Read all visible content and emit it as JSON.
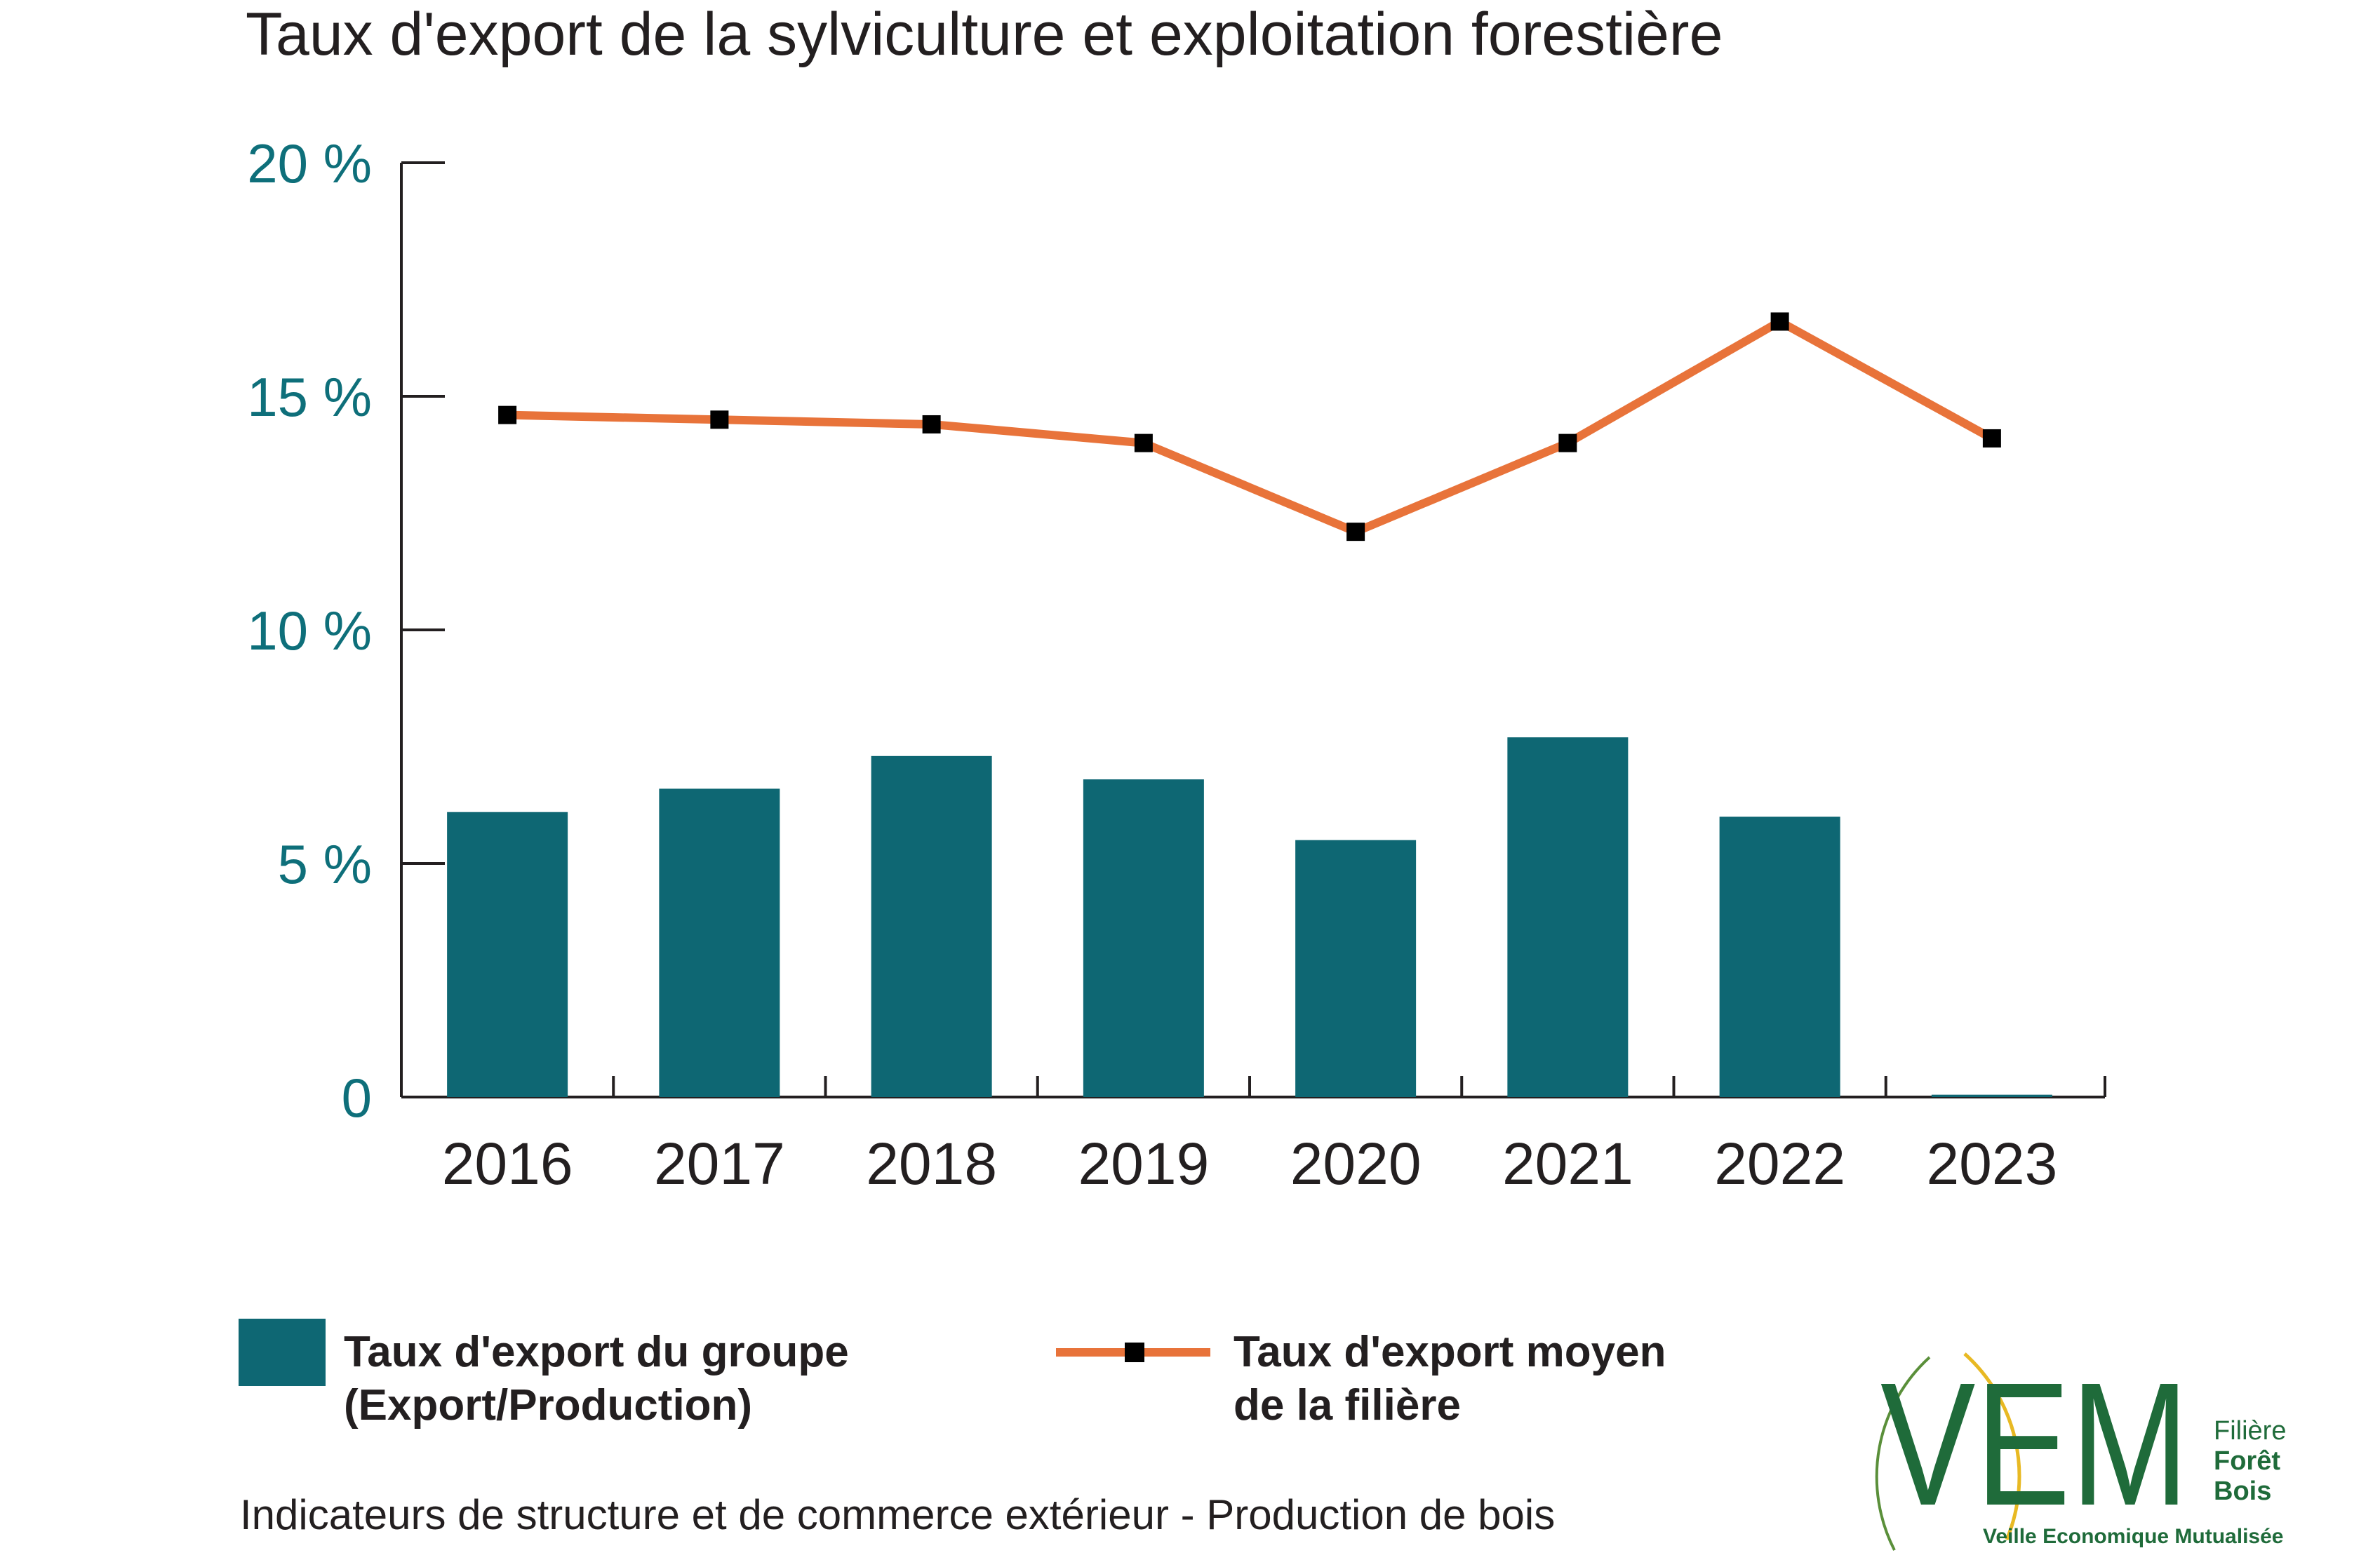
{
  "chart_data": {
    "type": "bar",
    "title": "Taux d'export de la sylviculture et exploitation forestière",
    "categories": [
      "2016",
      "2017",
      "2018",
      "2019",
      "2020",
      "2021",
      "2022",
      "2023"
    ],
    "yticks": [
      "0",
      "5 %",
      "10 %",
      "15 %",
      "20 %"
    ],
    "ylim": [
      0,
      20
    ],
    "series": [
      {
        "name": "Taux d'export du groupe (Export/Production)",
        "legend_lines": [
          "Taux d'export du groupe",
          "(Export/Production)"
        ],
        "type": "bar",
        "values": [
          6.1,
          6.6,
          7.3,
          6.8,
          5.5,
          7.7,
          6.0,
          0.05
        ],
        "color": "#0e6773"
      },
      {
        "name": "Taux d'export moyen de la filière",
        "legend_lines": [
          "Taux d'export moyen",
          "de la filière"
        ],
        "type": "line",
        "values": [
          14.6,
          14.5,
          14.4,
          14.0,
          12.1,
          14.0,
          16.6,
          14.1
        ],
        "color": "#e8733a",
        "marker_color": "#000000"
      }
    ],
    "grid": false,
    "legend_position": "bottom"
  },
  "footer": {
    "source": "Indicateurs de structure et de commerce extérieur - Production de bois"
  },
  "logo": {
    "letters": "VEM",
    "line1": "Filière",
    "line2": "Forêt",
    "line3": "Bois",
    "tagline": "Veille Economique Mutualisée",
    "color": "#1f6b3a",
    "accent": "#e8b923"
  }
}
